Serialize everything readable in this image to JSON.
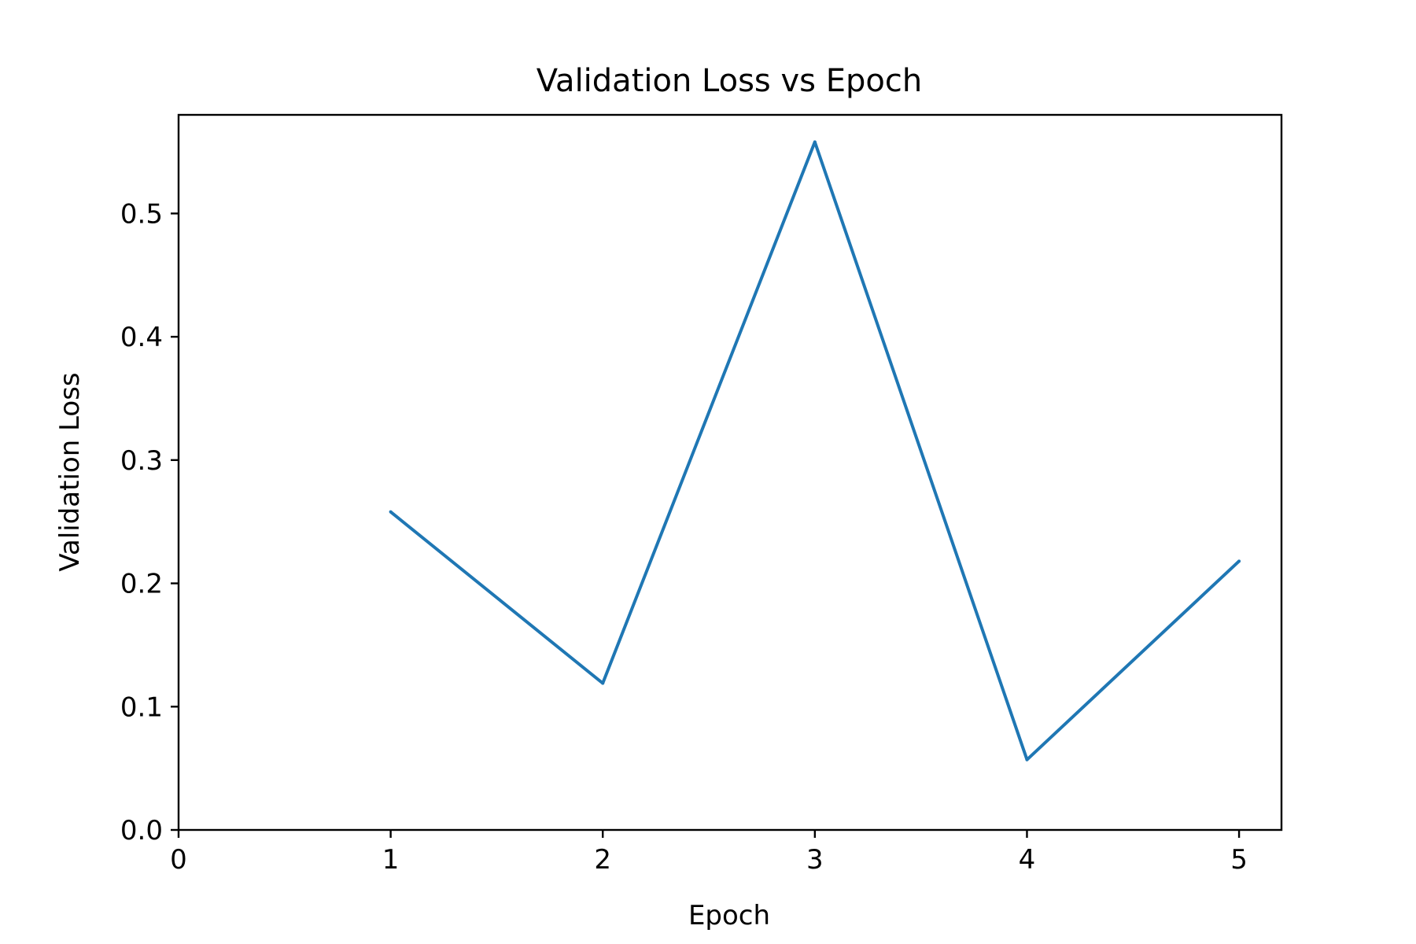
{
  "chart_data": {
    "type": "line",
    "title": "Validation Loss vs Epoch",
    "xlabel": "Epoch",
    "ylabel": "Validation Loss",
    "xlim": [
      0,
      5.2
    ],
    "ylim": [
      0.0,
      0.58
    ],
    "xticks": [
      0,
      1,
      2,
      3,
      4,
      5
    ],
    "yticks": [
      0.0,
      0.1,
      0.2,
      0.3,
      0.4,
      0.5
    ],
    "ytick_labels": [
      "0.0",
      "0.1",
      "0.2",
      "0.3",
      "0.4",
      "0.5"
    ],
    "grid": false,
    "legend": "none",
    "series": [
      {
        "color": "#1f77b4",
        "x": [
          1,
          2,
          3,
          4,
          5
        ],
        "y": [
          0.258,
          0.119,
          0.558,
          0.057,
          0.218
        ]
      }
    ]
  }
}
